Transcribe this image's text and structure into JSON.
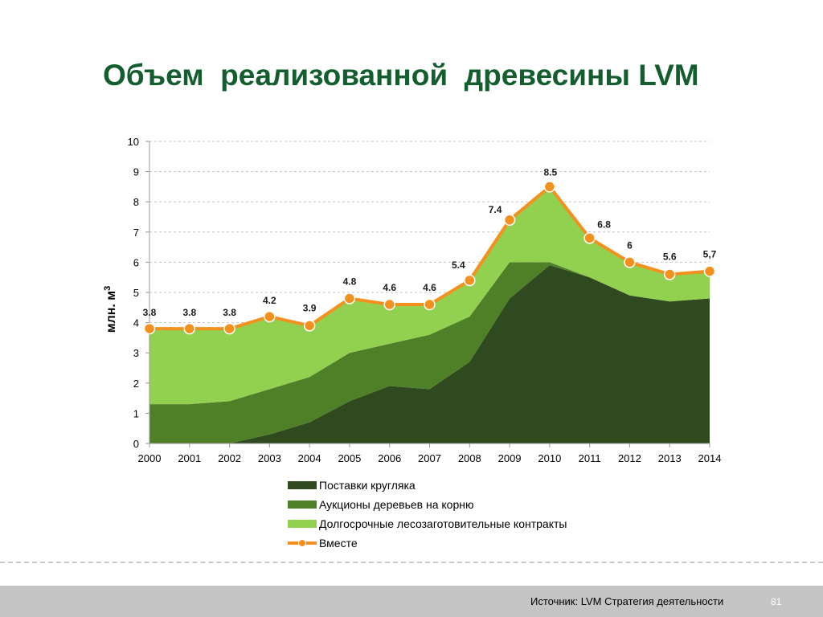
{
  "slide": {
    "source": "Источник: LVM Стратегия деятельности",
    "page_number": "81"
  },
  "chart_data": {
    "type": "area",
    "stacked": true,
    "title": "Объем  реализованной  древесины LVM",
    "xlabel": "",
    "ylabel": "млн. м",
    "ylabel_superscript": "3",
    "categories": [
      "2000",
      "2001",
      "2002",
      "2003",
      "2004",
      "2005",
      "2006",
      "2007",
      "2008",
      "2009",
      "2010",
      "2011",
      "2012",
      "2013",
      "2014"
    ],
    "ylim": [
      0,
      10
    ],
    "yticks": [
      0,
      1,
      2,
      3,
      4,
      5,
      6,
      7,
      8,
      9,
      10
    ],
    "grid": true,
    "legend_position": "bottom",
    "series": [
      {
        "name": "Поставки кругляка",
        "type": "area",
        "color": "#2e4a1e",
        "values": [
          0,
          0,
          0,
          0.3,
          0.7,
          1.4,
          1.9,
          1.8,
          2.7,
          4.8,
          5.9,
          5.5,
          4.9,
          4.7,
          4.8
        ]
      },
      {
        "name": "Аукционы деревьев на корню",
        "type": "area",
        "color": "#4f7f27",
        "values": [
          1.3,
          1.3,
          1.4,
          1.5,
          1.5,
          1.6,
          1.4,
          1.8,
          1.5,
          1.2,
          0.1,
          0,
          0,
          0,
          0
        ]
      },
      {
        "name": "Долгосрочные лесозаготовительные контракты",
        "type": "area",
        "color": "#92d050",
        "values": [
          2.5,
          2.5,
          2.4,
          2.4,
          1.7,
          1.8,
          1.3,
          1.0,
          1.2,
          1.4,
          2.5,
          1.3,
          1.1,
          0.9,
          0.9
        ]
      },
      {
        "name": "Вместе",
        "type": "line",
        "color": "#f4901e",
        "values": [
          3.8,
          3.8,
          3.8,
          4.2,
          3.9,
          4.8,
          4.6,
          4.6,
          5.4,
          7.4,
          8.5,
          6.8,
          6.0,
          5.6,
          5.7
        ],
        "data_labels": [
          "3.8",
          "3.8",
          "3.8",
          "4.2",
          "3.9",
          "4.8",
          "4.6",
          "4.6",
          "5.4",
          "7.4",
          "8.5",
          "6.8",
          "6",
          "5.6",
          "5,7"
        ]
      }
    ]
  }
}
